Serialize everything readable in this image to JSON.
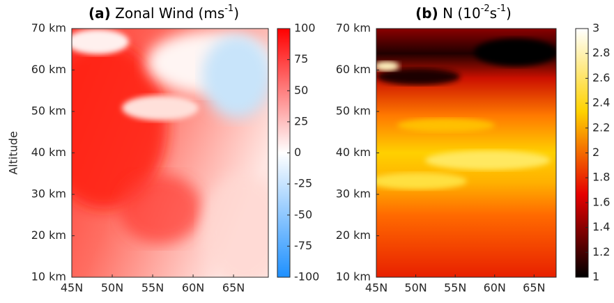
{
  "chart_data": [
    {
      "type": "heatmap",
      "panel": "(a)",
      "title": [
        "Zonal Wind (ms",
        "-1",
        ")"
      ],
      "ylabel": "Altitude",
      "xlim": [
        45,
        69.3
      ],
      "xticks": [
        {
          "value": 45,
          "label": "45N"
        },
        {
          "value": 50,
          "label": "50N"
        },
        {
          "value": 55,
          "label": "55N"
        },
        {
          "value": 60,
          "label": "60N"
        },
        {
          "value": 65,
          "label": "65N"
        }
      ],
      "ylim": [
        10,
        70
      ],
      "yticks": [
        {
          "value": 10,
          "label": "10 km"
        },
        {
          "value": 20,
          "label": "20 km"
        },
        {
          "value": 30,
          "label": "30 km"
        },
        {
          "value": 40,
          "label": "40 km"
        },
        {
          "value": 50,
          "label": "50 km"
        },
        {
          "value": 60,
          "label": "60 km"
        },
        {
          "value": 70,
          "label": "70 km"
        }
      ],
      "clim": [
        -100,
        100
      ],
      "cticks": [
        -100,
        -75,
        -50,
        -25,
        0,
        25,
        50,
        75,
        100
      ],
      "colormap": [
        "#1e90ff",
        "#ffffff",
        "#ff0000"
      ]
    },
    {
      "type": "heatmap",
      "panel": "(b)",
      "title": [
        "N (10",
        "-2",
        "s",
        "-1",
        ")"
      ],
      "xlim": [
        45,
        67.8
      ],
      "xticks": [
        {
          "value": 45,
          "label": "45N"
        },
        {
          "value": 50,
          "label": "50N"
        },
        {
          "value": 55,
          "label": "55N"
        },
        {
          "value": 60,
          "label": "60N"
        },
        {
          "value": 65,
          "label": "65N"
        }
      ],
      "ylim": [
        10,
        70
      ],
      "yticks": [
        {
          "value": 10,
          "label": "10 km"
        },
        {
          "value": 20,
          "label": "20 km"
        },
        {
          "value": 30,
          "label": "30 km"
        },
        {
          "value": 40,
          "label": "40 km"
        },
        {
          "value": 50,
          "label": "50 km"
        },
        {
          "value": 60,
          "label": "60 km"
        },
        {
          "value": 70,
          "label": "70 km"
        }
      ],
      "clim": [
        1,
        3
      ],
      "cticks": [
        1,
        1.2,
        1.4,
        1.6,
        1.8,
        2,
        2.2,
        2.4,
        2.6,
        2.8,
        3
      ],
      "colormap": [
        "#000000",
        "#e60000",
        "#ffd200",
        "#ffffff"
      ]
    }
  ]
}
